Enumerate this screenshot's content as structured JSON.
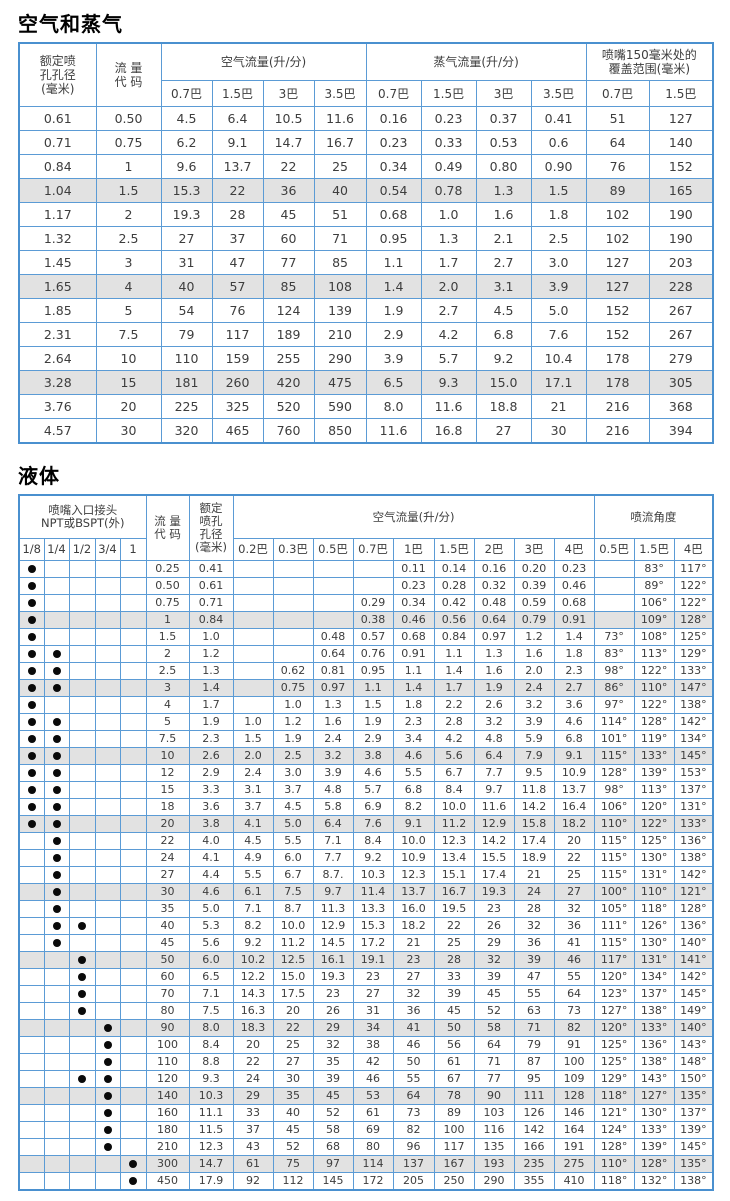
{
  "colors": {
    "grid_blue": "#5b9bd5",
    "outer_blue": "#4a90cf",
    "shaded_row": "#e2e2e2",
    "text": "#3d3d3d"
  },
  "air_steam_table": {
    "title": "空气和蒸气",
    "header": {
      "orifice": "额定喷\n孔孔径\n(毫米)",
      "flow_code": "流 量\n代 码",
      "air_group": "空气流量(升/分)",
      "steam_group": "蒸气流量(升/分)",
      "coverage_group": "喷嘴150毫米处的\n覆盖范围(毫米)",
      "air_cols": [
        "0.7巴",
        "1.5巴",
        "3巴",
        "3.5巴"
      ],
      "steam_cols": [
        "0.7巴",
        "1.5巴",
        "3巴",
        "3.5巴"
      ],
      "coverage_cols": [
        "0.7巴",
        "1.5巴"
      ]
    },
    "shaded_rows": [
      3,
      7,
      11
    ],
    "rows": [
      [
        "0.61",
        "0.50",
        "4.5",
        "6.4",
        "10.5",
        "11.6",
        "0.16",
        "0.23",
        "0.37",
        "0.41",
        "51",
        "127"
      ],
      [
        "0.71",
        "0.75",
        "6.2",
        "9.1",
        "14.7",
        "16.7",
        "0.23",
        "0.33",
        "0.53",
        "0.6",
        "64",
        "140"
      ],
      [
        "0.84",
        "1",
        "9.6",
        "13.7",
        "22",
        "25",
        "0.34",
        "0.49",
        "0.80",
        "0.90",
        "76",
        "152"
      ],
      [
        "1.04",
        "1.5",
        "15.3",
        "22",
        "36",
        "40",
        "0.54",
        "0.78",
        "1.3",
        "1.5",
        "89",
        "165"
      ],
      [
        "1.17",
        "2",
        "19.3",
        "28",
        "45",
        "51",
        "0.68",
        "1.0",
        "1.6",
        "1.8",
        "102",
        "190"
      ],
      [
        "1.32",
        "2.5",
        "27",
        "37",
        "60",
        "71",
        "0.95",
        "1.3",
        "2.1",
        "2.5",
        "102",
        "190"
      ],
      [
        "1.45",
        "3",
        "31",
        "47",
        "77",
        "85",
        "1.1",
        "1.7",
        "2.7",
        "3.0",
        "127",
        "203"
      ],
      [
        "1.65",
        "4",
        "40",
        "57",
        "85",
        "108",
        "1.4",
        "2.0",
        "3.1",
        "3.9",
        "127",
        "228"
      ],
      [
        "1.85",
        "5",
        "54",
        "76",
        "124",
        "139",
        "1.9",
        "2.7",
        "4.5",
        "5.0",
        "152",
        "267"
      ],
      [
        "2.31",
        "7.5",
        "79",
        "117",
        "189",
        "210",
        "2.9",
        "4.2",
        "6.8",
        "7.6",
        "152",
        "267"
      ],
      [
        "2.64",
        "10",
        "110",
        "159",
        "255",
        "290",
        "3.9",
        "5.7",
        "9.2",
        "10.4",
        "178",
        "279"
      ],
      [
        "3.28",
        "15",
        "181",
        "260",
        "420",
        "475",
        "6.5",
        "9.3",
        "15.0",
        "17.1",
        "178",
        "305"
      ],
      [
        "3.76",
        "20",
        "225",
        "325",
        "520",
        "590",
        "8.0",
        "11.6",
        "18.8",
        "21",
        "216",
        "368"
      ],
      [
        "4.57",
        "30",
        "320",
        "465",
        "760",
        "850",
        "11.6",
        "16.8",
        "27",
        "30",
        "216",
        "394"
      ]
    ]
  },
  "liquid_table": {
    "title": "液体",
    "header": {
      "inlet_group": "喷嘴入口接头\nNPT或BSPT(外)",
      "inlet_cols": [
        "1/8",
        "1/4",
        "1/2",
        "3/4",
        "1"
      ],
      "flow_code": "流 量\n代 码",
      "orifice": "额定\n喷孔\n孔径\n(毫米)",
      "air_group": "空气流量(升/分)",
      "air_cols": [
        "0.2巴",
        "0.3巴",
        "0.5巴",
        "0.7巴",
        "1巴",
        "1.5巴",
        "2巴",
        "3巴",
        "4巴"
      ],
      "angle_group": "喷流角度",
      "angle_cols": [
        "0.5巴",
        "1.5巴",
        "4巴"
      ]
    },
    "shaded_rows": [
      3,
      7,
      11,
      15,
      19,
      23,
      27,
      31,
      35
    ],
    "rows": [
      {
        "inlet": [
          1,
          0,
          0,
          0,
          0
        ],
        "code": "0.25",
        "orifice": "0.41",
        "flows": [
          "",
          "",
          "",
          "",
          "0.11",
          "0.14",
          "0.16",
          "0.20",
          "0.23"
        ],
        "angles": [
          "",
          "83°",
          "117°"
        ]
      },
      {
        "inlet": [
          1,
          0,
          0,
          0,
          0
        ],
        "code": "0.50",
        "orifice": "0.61",
        "flows": [
          "",
          "",
          "",
          "",
          "0.23",
          "0.28",
          "0.32",
          "0.39",
          "0.46"
        ],
        "angles": [
          "",
          "89°",
          "122°"
        ]
      },
      {
        "inlet": [
          1,
          0,
          0,
          0,
          0
        ],
        "code": "0.75",
        "orifice": "0.71",
        "flows": [
          "",
          "",
          "",
          "0.29",
          "0.34",
          "0.42",
          "0.48",
          "0.59",
          "0.68"
        ],
        "angles": [
          "",
          "106°",
          "122°"
        ]
      },
      {
        "inlet": [
          1,
          0,
          0,
          0,
          0
        ],
        "code": "1",
        "orifice": "0.84",
        "flows": [
          "",
          "",
          "",
          "0.38",
          "0.46",
          "0.56",
          "0.64",
          "0.79",
          "0.91"
        ],
        "angles": [
          "",
          "109°",
          "128°"
        ]
      },
      {
        "inlet": [
          1,
          0,
          0,
          0,
          0
        ],
        "code": "1.5",
        "orifice": "1.0",
        "flows": [
          "",
          "",
          "0.48",
          "0.57",
          "0.68",
          "0.84",
          "0.97",
          "1.2",
          "1.4"
        ],
        "angles": [
          "73°",
          "108°",
          "125°"
        ]
      },
      {
        "inlet": [
          1,
          1,
          0,
          0,
          0
        ],
        "code": "2",
        "orifice": "1.2",
        "flows": [
          "",
          "",
          "0.64",
          "0.76",
          "0.91",
          "1.1",
          "1.3",
          "1.6",
          "1.8"
        ],
        "angles": [
          "83°",
          "113°",
          "129°"
        ]
      },
      {
        "inlet": [
          1,
          1,
          0,
          0,
          0
        ],
        "code": "2.5",
        "orifice": "1.3",
        "flows": [
          "",
          "0.62",
          "0.81",
          "0.95",
          "1.1",
          "1.4",
          "1.6",
          "2.0",
          "2.3"
        ],
        "angles": [
          "98°",
          "122°",
          "133°"
        ]
      },
      {
        "inlet": [
          1,
          1,
          0,
          0,
          0
        ],
        "code": "3",
        "orifice": "1.4",
        "flows": [
          "",
          "0.75",
          "0.97",
          "1.1",
          "1.4",
          "1.7",
          "1.9",
          "2.4",
          "2.7"
        ],
        "angles": [
          "86°",
          "110°",
          "147°"
        ]
      },
      {
        "inlet": [
          1,
          0,
          0,
          0,
          0
        ],
        "code": "4",
        "orifice": "1.7",
        "flows": [
          "",
          "1.0",
          "1.3",
          "1.5",
          "1.8",
          "2.2",
          "2.6",
          "3.2",
          "3.6"
        ],
        "angles": [
          "97°",
          "122°",
          "138°"
        ]
      },
      {
        "inlet": [
          1,
          1,
          0,
          0,
          0
        ],
        "code": "5",
        "orifice": "1.9",
        "flows": [
          "1.0",
          "1.2",
          "1.6",
          "1.9",
          "2.3",
          "2.8",
          "3.2",
          "3.9",
          "4.6"
        ],
        "angles": [
          "114°",
          "128°",
          "142°"
        ]
      },
      {
        "inlet": [
          1,
          1,
          0,
          0,
          0
        ],
        "code": "7.5",
        "orifice": "2.3",
        "flows": [
          "1.5",
          "1.9",
          "2.4",
          "2.9",
          "3.4",
          "4.2",
          "4.8",
          "5.9",
          "6.8"
        ],
        "angles": [
          "101°",
          "119°",
          "134°"
        ]
      },
      {
        "inlet": [
          1,
          1,
          0,
          0,
          0
        ],
        "code": "10",
        "orifice": "2.6",
        "flows": [
          "2.0",
          "2.5",
          "3.2",
          "3.8",
          "4.6",
          "5.6",
          "6.4",
          "7.9",
          "9.1"
        ],
        "angles": [
          "115°",
          "133°",
          "145°"
        ]
      },
      {
        "inlet": [
          1,
          1,
          0,
          0,
          0
        ],
        "code": "12",
        "orifice": "2.9",
        "flows": [
          "2.4",
          "3.0",
          "3.9",
          "4.6",
          "5.5",
          "6.7",
          "7.7",
          "9.5",
          "10.9"
        ],
        "angles": [
          "128°",
          "139°",
          "153°"
        ]
      },
      {
        "inlet": [
          1,
          1,
          0,
          0,
          0
        ],
        "code": "15",
        "orifice": "3.3",
        "flows": [
          "3.1",
          "3.7",
          "4.8",
          "5.7",
          "6.8",
          "8.4",
          "9.7",
          "11.8",
          "13.7"
        ],
        "angles": [
          "98°",
          "113°",
          "137°"
        ]
      },
      {
        "inlet": [
          1,
          1,
          0,
          0,
          0
        ],
        "code": "18",
        "orifice": "3.6",
        "flows": [
          "3.7",
          "4.5",
          "5.8",
          "6.9",
          "8.2",
          "10.0",
          "11.6",
          "14.2",
          "16.4"
        ],
        "angles": [
          "106°",
          "120°",
          "131°"
        ]
      },
      {
        "inlet": [
          1,
          1,
          0,
          0,
          0
        ],
        "code": "20",
        "orifice": "3.8",
        "flows": [
          "4.1",
          "5.0",
          "6.4",
          "7.6",
          "9.1",
          "11.2",
          "12.9",
          "15.8",
          "18.2"
        ],
        "angles": [
          "110°",
          "122°",
          "133°"
        ]
      },
      {
        "inlet": [
          0,
          1,
          0,
          0,
          0
        ],
        "code": "22",
        "orifice": "4.0",
        "flows": [
          "4.5",
          "5.5",
          "7.1",
          "8.4",
          "10.0",
          "12.3",
          "14.2",
          "17.4",
          "20"
        ],
        "angles": [
          "115°",
          "125°",
          "136°"
        ]
      },
      {
        "inlet": [
          0,
          1,
          0,
          0,
          0
        ],
        "code": "24",
        "orifice": "4.1",
        "flows": [
          "4.9",
          "6.0",
          "7.7",
          "9.2",
          "10.9",
          "13.4",
          "15.5",
          "18.9",
          "22"
        ],
        "angles": [
          "115°",
          "130°",
          "138°"
        ]
      },
      {
        "inlet": [
          0,
          1,
          0,
          0,
          0
        ],
        "code": "27",
        "orifice": "4.4",
        "flows": [
          "5.5",
          "6.7",
          "8.7.",
          "10.3",
          "12.3",
          "15.1",
          "17.4",
          "21",
          "25"
        ],
        "angles": [
          "115°",
          "131°",
          "142°"
        ]
      },
      {
        "inlet": [
          0,
          1,
          0,
          0,
          0
        ],
        "code": "30",
        "orifice": "4.6",
        "flows": [
          "6.1",
          "7.5",
          "9.7",
          "11.4",
          "13.7",
          "16.7",
          "19.3",
          "24",
          "27"
        ],
        "angles": [
          "100°",
          "110°",
          "121°"
        ]
      },
      {
        "inlet": [
          0,
          1,
          0,
          0,
          0
        ],
        "code": "35",
        "orifice": "5.0",
        "flows": [
          "7.1",
          "8.7",
          "11.3",
          "13.3",
          "16.0",
          "19.5",
          "23",
          "28",
          "32"
        ],
        "angles": [
          "105°",
          "118°",
          "128°"
        ]
      },
      {
        "inlet": [
          0,
          1,
          1,
          0,
          0
        ],
        "code": "40",
        "orifice": "5.3",
        "flows": [
          "8.2",
          "10.0",
          "12.9",
          "15.3",
          "18.2",
          "22",
          "26",
          "32",
          "36"
        ],
        "angles": [
          "111°",
          "126°",
          "136°"
        ]
      },
      {
        "inlet": [
          0,
          1,
          0,
          0,
          0
        ],
        "code": "45",
        "orifice": "5.6",
        "flows": [
          "9.2",
          "11.2",
          "14.5",
          "17.2",
          "21",
          "25",
          "29",
          "36",
          "41"
        ],
        "angles": [
          "115°",
          "130°",
          "140°"
        ]
      },
      {
        "inlet": [
          0,
          0,
          1,
          0,
          0
        ],
        "code": "50",
        "orifice": "6.0",
        "flows": [
          "10.2",
          "12.5",
          "16.1",
          "19.1",
          "23",
          "28",
          "32",
          "39",
          "46"
        ],
        "angles": [
          "117°",
          "131°",
          "141°"
        ]
      },
      {
        "inlet": [
          0,
          0,
          1,
          0,
          0
        ],
        "code": "60",
        "orifice": "6.5",
        "flows": [
          "12.2",
          "15.0",
          "19.3",
          "23",
          "27",
          "33",
          "39",
          "47",
          "55"
        ],
        "angles": [
          "120°",
          "134°",
          "142°"
        ]
      },
      {
        "inlet": [
          0,
          0,
          1,
          0,
          0
        ],
        "code": "70",
        "orifice": "7.1",
        "flows": [
          "14.3",
          "17.5",
          "23",
          "27",
          "32",
          "39",
          "45",
          "55",
          "64"
        ],
        "angles": [
          "123°",
          "137°",
          "145°"
        ]
      },
      {
        "inlet": [
          0,
          0,
          1,
          0,
          0
        ],
        "code": "80",
        "orifice": "7.5",
        "flows": [
          "16.3",
          "20",
          "26",
          "31",
          "36",
          "45",
          "52",
          "63",
          "73"
        ],
        "angles": [
          "127°",
          "138°",
          "149°"
        ]
      },
      {
        "inlet": [
          0,
          0,
          0,
          1,
          0
        ],
        "code": "90",
        "orifice": "8.0",
        "flows": [
          "18.3",
          "22",
          "29",
          "34",
          "41",
          "50",
          "58",
          "71",
          "82"
        ],
        "angles": [
          "120°",
          "133°",
          "140°"
        ]
      },
      {
        "inlet": [
          0,
          0,
          0,
          1,
          0
        ],
        "code": "100",
        "orifice": "8.4",
        "flows": [
          "20",
          "25",
          "32",
          "38",
          "46",
          "56",
          "64",
          "79",
          "91"
        ],
        "angles": [
          "125°",
          "136°",
          "143°"
        ]
      },
      {
        "inlet": [
          0,
          0,
          0,
          1,
          0
        ],
        "code": "110",
        "orifice": "8.8",
        "flows": [
          "22",
          "27",
          "35",
          "42",
          "50",
          "61",
          "71",
          "87",
          "100"
        ],
        "angles": [
          "125°",
          "138°",
          "148°"
        ]
      },
      {
        "inlet": [
          0,
          0,
          1,
          1,
          0
        ],
        "code": "120",
        "orifice": "9.3",
        "flows": [
          "24",
          "30",
          "39",
          "46",
          "55",
          "67",
          "77",
          "95",
          "109"
        ],
        "angles": [
          "129°",
          "143°",
          "150°"
        ]
      },
      {
        "inlet": [
          0,
          0,
          0,
          1,
          0
        ],
        "code": "140",
        "orifice": "10.3",
        "flows": [
          "29",
          "35",
          "45",
          "53",
          "64",
          "78",
          "90",
          "111",
          "128"
        ],
        "angles": [
          "118°",
          "127°",
          "135°"
        ]
      },
      {
        "inlet": [
          0,
          0,
          0,
          1,
          0
        ],
        "code": "160",
        "orifice": "11.1",
        "flows": [
          "33",
          "40",
          "52",
          "61",
          "73",
          "89",
          "103",
          "126",
          "146"
        ],
        "angles": [
          "121°",
          "130°",
          "137°"
        ]
      },
      {
        "inlet": [
          0,
          0,
          0,
          1,
          0
        ],
        "code": "180",
        "orifice": "11.5",
        "flows": [
          "37",
          "45",
          "58",
          "69",
          "82",
          "100",
          "116",
          "142",
          "164"
        ],
        "angles": [
          "124°",
          "133°",
          "139°"
        ]
      },
      {
        "inlet": [
          0,
          0,
          0,
          1,
          0
        ],
        "code": "210",
        "orifice": "12.3",
        "flows": [
          "43",
          "52",
          "68",
          "80",
          "96",
          "117",
          "135",
          "166",
          "191"
        ],
        "angles": [
          "128°",
          "139°",
          "145°"
        ]
      },
      {
        "inlet": [
          0,
          0,
          0,
          0,
          1
        ],
        "code": "300",
        "orifice": "14.7",
        "flows": [
          "61",
          "75",
          "97",
          "114",
          "137",
          "167",
          "193",
          "235",
          "275"
        ],
        "angles": [
          "110°",
          "128°",
          "135°"
        ]
      },
      {
        "inlet": [
          0,
          0,
          0,
          0,
          1
        ],
        "code": "450",
        "orifice": "17.9",
        "flows": [
          "92",
          "112",
          "145",
          "172",
          "205",
          "250",
          "290",
          "355",
          "410"
        ],
        "angles": [
          "118°",
          "132°",
          "138°"
        ]
      }
    ]
  }
}
